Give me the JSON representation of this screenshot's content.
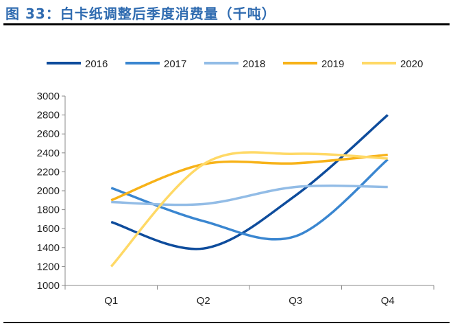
{
  "title": "图 33：白卡纸调整后季度消费量（千吨）",
  "chart_data": {
    "type": "line",
    "title": "图 33：白卡纸调整后季度消费量（千吨）",
    "categories": [
      "Q1",
      "Q2",
      "Q3",
      "Q4"
    ],
    "ylim": [
      1000,
      3000
    ],
    "yticks": [
      1000,
      1200,
      1400,
      1600,
      1800,
      2000,
      2200,
      2400,
      2600,
      2800,
      3000
    ],
    "grid": false,
    "legend": "top",
    "smooth": true,
    "series": [
      {
        "name": "2016",
        "color": "#0E4C9C",
        "values": [
          1670,
          1390,
          1950,
          2800
        ]
      },
      {
        "name": "2017",
        "color": "#3A86D0",
        "values": [
          2030,
          1680,
          1520,
          2330
        ]
      },
      {
        "name": "2018",
        "color": "#92BCE6",
        "values": [
          1880,
          1860,
          2040,
          2040
        ]
      },
      {
        "name": "2019",
        "color": "#F7B218",
        "values": [
          1900,
          2280,
          2290,
          2380
        ]
      },
      {
        "name": "2020",
        "color": "#FFD966",
        "values": [
          1200,
          2280,
          2390,
          2340
        ]
      }
    ]
  }
}
